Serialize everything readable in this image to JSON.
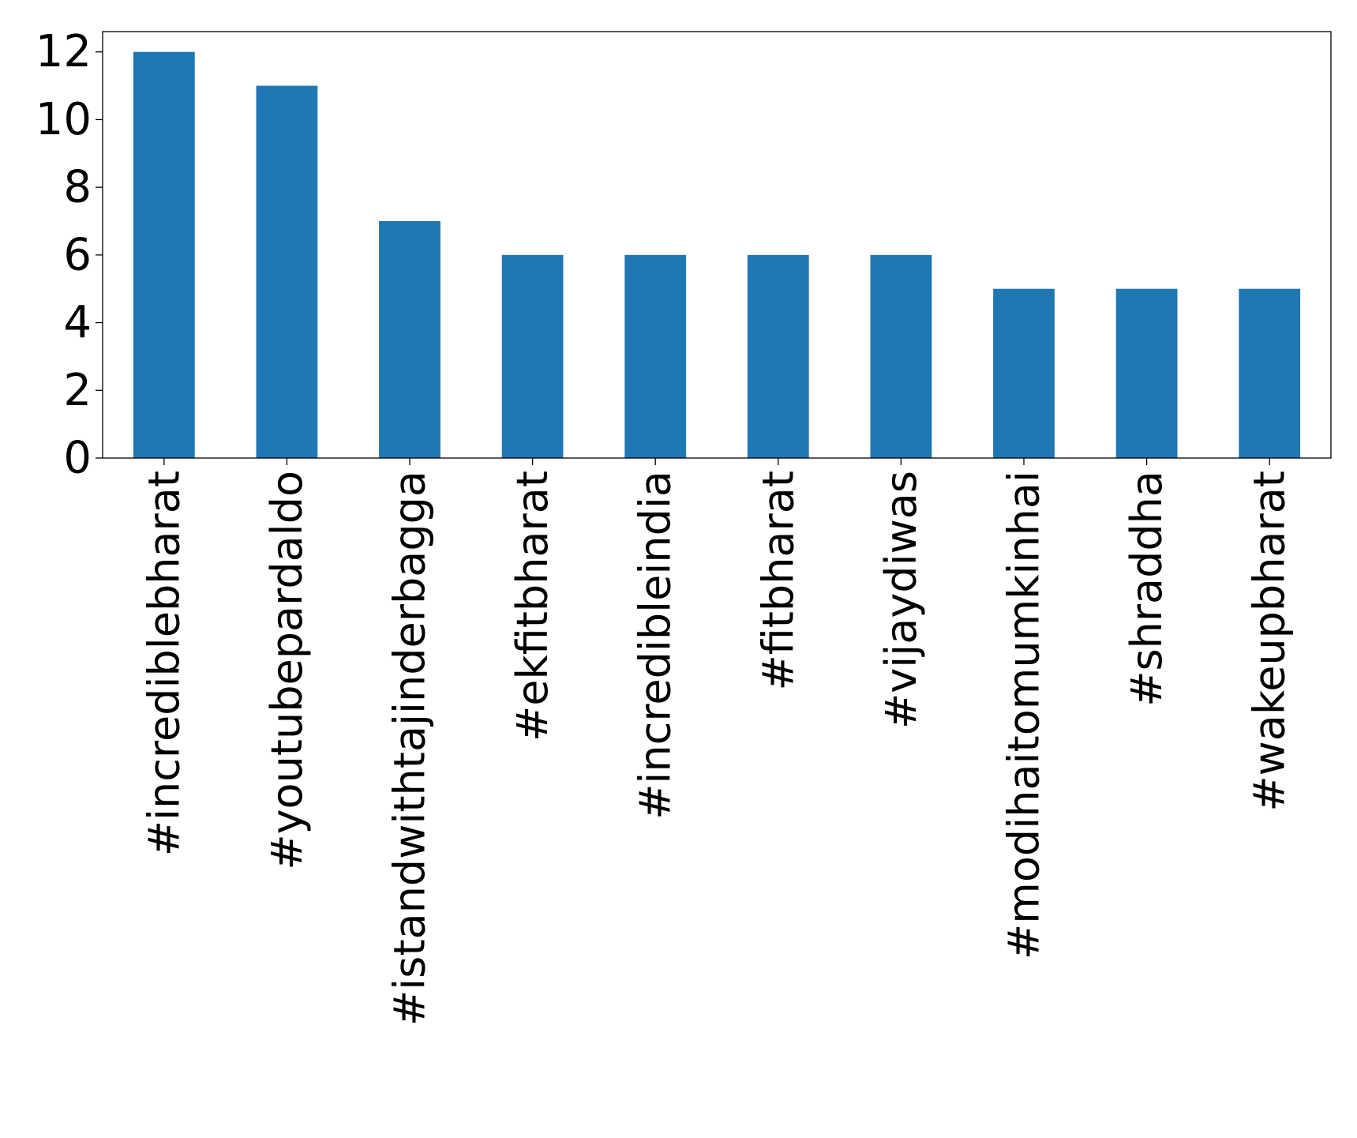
{
  "chart_data": {
    "type": "bar",
    "title": "",
    "xlabel": "",
    "ylabel": "",
    "categories": [
      "#incrediblebharat",
      "#youtubepardaldo",
      "#istandwithtajinderbagga",
      "#ekfitbharat",
      "#incredibleindia",
      "#fitbharat",
      "#vijaydiwas",
      "#modihaitomumkinhai",
      "#shraddha",
      "#wakeupbharat"
    ],
    "values": [
      12,
      11,
      7,
      6,
      6,
      6,
      6,
      5,
      5,
      5
    ],
    "ylim": [
      0,
      12.6
    ],
    "yticks": [
      0,
      2,
      4,
      6,
      8,
      10,
      12
    ],
    "grid": false,
    "legend": "none",
    "bar_color": "#1f77b4"
  }
}
